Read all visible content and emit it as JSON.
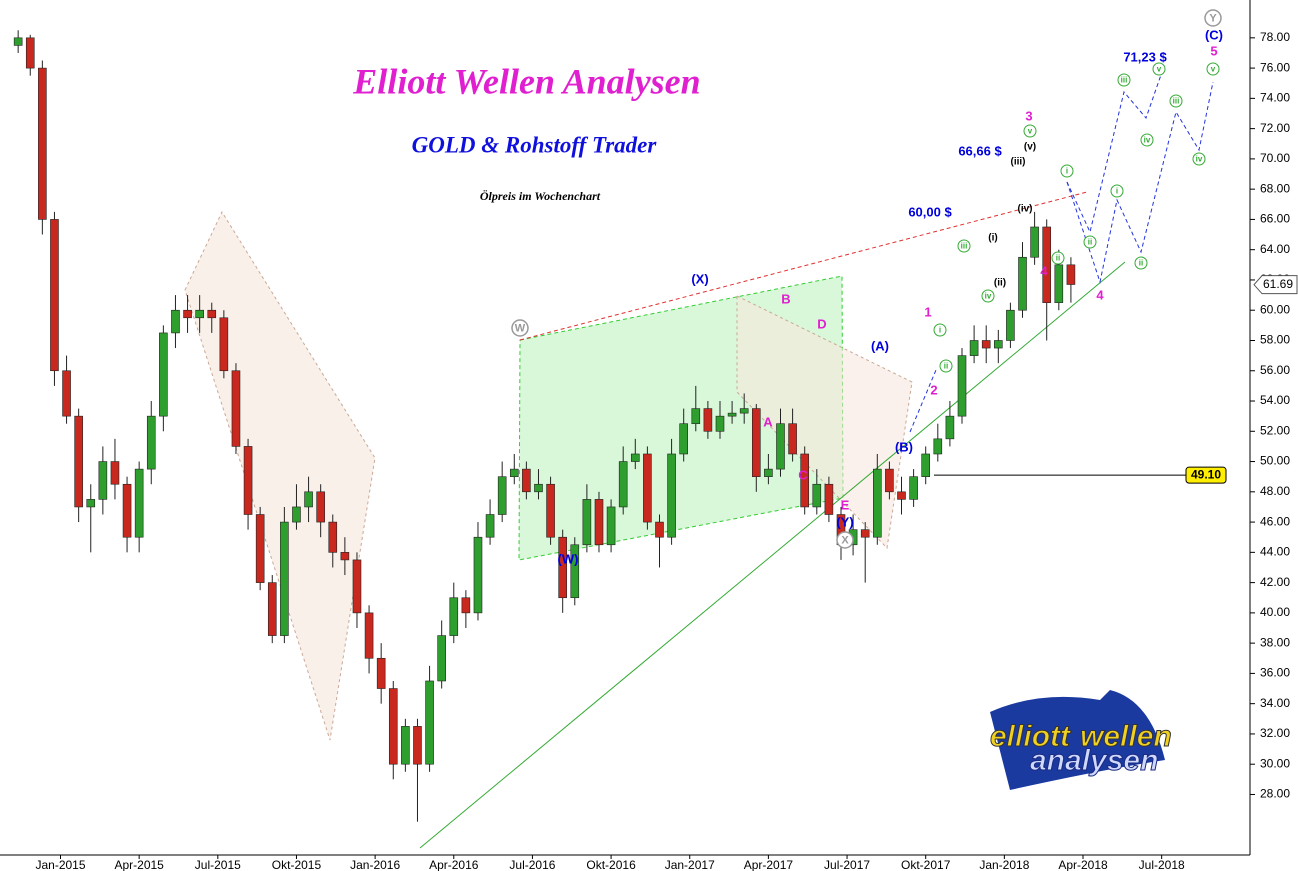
{
  "chart_data": {
    "type": "candlestick",
    "title": "Elliott Wellen Analysen",
    "subtitle": "GOLD & Rohstoff Trader",
    "caption": "Ölpreis im Wochenchart",
    "logo": [
      "elliott",
      "wellen",
      "analysen"
    ],
    "up_color": "#2e9e2e",
    "down_color": "#c8281e",
    "x": [
      -7,
      -5,
      -3,
      -1,
      1,
      3,
      5,
      7,
      9,
      11,
      13,
      15,
      17,
      19,
      21,
      23,
      25,
      27,
      29,
      31,
      33,
      35,
      37,
      39,
      41,
      43,
      45,
      47,
      49,
      51,
      53,
      55,
      57,
      59,
      61,
      63,
      65,
      67,
      69,
      71,
      73,
      75,
      77,
      79,
      81,
      83,
      85,
      87,
      89,
      91,
      93,
      95,
      97,
      99,
      101,
      103,
      105,
      107,
      109,
      111,
      113,
      115,
      117,
      119,
      121,
      123,
      125,
      127,
      129,
      131,
      133,
      135,
      137,
      139,
      141,
      143,
      145,
      147,
      149,
      151,
      153,
      155,
      157,
      159,
      161,
      163,
      165,
      167
    ],
    "open": [
      77.5,
      78,
      76,
      66,
      56,
      53,
      47,
      47.5,
      50,
      48.5,
      45,
      49.5,
      53,
      58.5,
      60,
      59.5,
      60,
      59.5,
      56,
      51,
      46.5,
      42,
      38.5,
      46,
      47,
      48,
      46,
      44,
      43.5,
      40,
      37,
      35,
      30,
      32.5,
      30,
      35.5,
      38.5,
      41,
      40,
      45,
      46.5,
      49,
      49.5,
      48,
      48.5,
      45,
      41,
      44.5,
      47.5,
      44.5,
      47,
      50,
      50.5,
      46,
      45,
      50.5,
      52.5,
      53.5,
      52,
      53,
      53.2,
      53.5,
      49,
      49.5,
      52.5,
      50.5,
      47,
      48.5,
      46.5,
      44.5,
      45.5,
      45,
      49.5,
      48,
      47.5,
      49,
      50.5,
      51.5,
      53,
      57,
      58,
      57.5,
      58,
      60,
      63.5,
      65.5,
      60.5,
      63
    ],
    "high": [
      78.5,
      78.2,
      76.5,
      66.5,
      57,
      53.5,
      48.5,
      51,
      51.5,
      49,
      50,
      54,
      59,
      61,
      61,
      61,
      60.5,
      60,
      56.5,
      51.5,
      47,
      42.5,
      47,
      48.5,
      49,
      48.5,
      46.5,
      45,
      44,
      40.5,
      38,
      35.5,
      33,
      33,
      36.5,
      39.5,
      42,
      41.5,
      46,
      47.5,
      50,
      50.5,
      50,
      49.5,
      49,
      45.5,
      45,
      48.5,
      48,
      47.5,
      51,
      51.5,
      51,
      46.5,
      51.5,
      53.5,
      55,
      54,
      54,
      54,
      54.5,
      53.8,
      50.5,
      53.5,
      53.5,
      51,
      49.5,
      49,
      47,
      46.5,
      46,
      50.5,
      50,
      49,
      49.5,
      51,
      52.5,
      54,
      57.5,
      59,
      59,
      58.7,
      60.5,
      64.5,
      66.5,
      66,
      64,
      63.5
    ],
    "low": [
      77,
      75.5,
      65,
      55,
      52.5,
      46,
      44,
      46.5,
      47.5,
      44,
      44,
      48.5,
      52,
      57.5,
      58.5,
      58.5,
      58.5,
      55.5,
      50.5,
      45.5,
      41.5,
      38,
      38,
      45.5,
      46,
      45,
      43,
      42.5,
      39,
      36,
      34,
      29,
      29.5,
      26.2,
      29.5,
      35,
      38,
      39,
      39.5,
      44.5,
      46,
      48.5,
      47.5,
      47.5,
      44.5,
      40,
      40.5,
      44,
      44,
      44,
      46.5,
      49.5,
      45.5,
      43,
      44.5,
      50,
      52,
      51.5,
      51.5,
      52.5,
      52.5,
      48,
      48.5,
      49,
      50,
      46.5,
      46.5,
      46,
      43.5,
      43.8,
      42,
      44.5,
      47.5,
      46.5,
      47,
      48.5,
      50,
      51,
      52.5,
      56.5,
      56.5,
      56.5,
      57.5,
      59.5,
      63,
      58,
      60,
      60.5
    ],
    "close": [
      78,
      76,
      66,
      56,
      53,
      47,
      47.5,
      50,
      48.5,
      45,
      49.5,
      53,
      58.5,
      60,
      59.5,
      60,
      59.5,
      56,
      51,
      46.5,
      42,
      38.5,
      46,
      47,
      48,
      46,
      44,
      43.5,
      40,
      37,
      35,
      30,
      32.5,
      30,
      35.5,
      38.5,
      41,
      40,
      45,
      46.5,
      49,
      49.5,
      48,
      48.5,
      45,
      41,
      44.5,
      47.5,
      44.5,
      47,
      50,
      50.5,
      46,
      45,
      50.5,
      52.5,
      53.5,
      52,
      53,
      53.2,
      53.5,
      49,
      49.5,
      52.5,
      50.5,
      47,
      48.5,
      46.5,
      44.5,
      45.5,
      45,
      49.5,
      48,
      47.5,
      49,
      50.5,
      51.5,
      53,
      57,
      58,
      57.5,
      58,
      60,
      63.5,
      65.5,
      60.5,
      63,
      61.7
    ],
    "xlim": [
      -10,
      196.6
    ],
    "xticks": [
      {
        "value": 0,
        "label": "Jan-2015"
      },
      {
        "value": 13,
        "label": "Apr-2015"
      },
      {
        "value": 26,
        "label": "Jul-2015"
      },
      {
        "value": 39,
        "label": "Okt-2015"
      },
      {
        "value": 52,
        "label": "Jan-2016"
      },
      {
        "value": 65,
        "label": "Apr-2016"
      },
      {
        "value": 78,
        "label": "Jul-2016"
      },
      {
        "value": 91,
        "label": "Okt-2016"
      },
      {
        "value": 104,
        "label": "Jan-2017"
      },
      {
        "value": 117,
        "label": "Apr-2017"
      },
      {
        "value": 130,
        "label": "Jul-2017"
      },
      {
        "value": 143,
        "label": "Okt-2017"
      },
      {
        "value": 156,
        "label": "Jan-2018"
      },
      {
        "value": 169,
        "label": "Apr-2018"
      },
      {
        "value": 182,
        "label": "Jul-2018"
      }
    ],
    "ylim": [
      24,
      80.5
    ],
    "yticks": [
      {
        "value": 28,
        "label": "28.00"
      },
      {
        "value": 30,
        "label": "30.00"
      },
      {
        "value": 32,
        "label": "32.00"
      },
      {
        "value": 34,
        "label": "34.00"
      },
      {
        "value": 36,
        "label": "36.00"
      },
      {
        "value": 38,
        "label": "38.00"
      },
      {
        "value": 40,
        "label": "40.00"
      },
      {
        "value": 42,
        "label": "42.00"
      },
      {
        "value": 44,
        "label": "44.00"
      },
      {
        "value": 46,
        "label": "46.00"
      },
      {
        "value": 48,
        "label": "48.00"
      },
      {
        "value": 50,
        "label": "50.00"
      },
      {
        "value": 52,
        "label": "52.00"
      },
      {
        "value": 54,
        "label": "54.00"
      },
      {
        "value": 56,
        "label": "56.00"
      },
      {
        "value": 58,
        "label": "58.00"
      },
      {
        "value": 60,
        "label": "60.00"
      },
      {
        "value": 62,
        "label": "62.00"
      },
      {
        "value": 64,
        "label": "64.00"
      },
      {
        "value": 66,
        "label": "66.00"
      },
      {
        "value": 68,
        "label": "68.00"
      },
      {
        "value": 70,
        "label": "70.00"
      },
      {
        "value": 72,
        "label": "72.00"
      },
      {
        "value": 74,
        "label": "74.00"
      },
      {
        "value": 76,
        "label": "76.00"
      },
      {
        "value": 78,
        "label": "78.00"
      }
    ],
    "last_price": 61.69,
    "level": {
      "value": 49.1,
      "label": "49.10"
    },
    "annotations": [
      {
        "text": "(W)",
        "color": "#0000dd"
      },
      {
        "text": "(X)",
        "color": "#0000dd"
      },
      {
        "text": "(Y)",
        "color": "#0000dd"
      },
      {
        "text": "(A)",
        "color": "#0000dd"
      },
      {
        "text": "(B)",
        "color": "#0000dd"
      },
      {
        "text": "(C)",
        "color": "#0000dd"
      },
      {
        "text": "W",
        "color": "#999999",
        "circled": true
      },
      {
        "text": "X",
        "color": "#999999",
        "circled": true
      },
      {
        "text": "Y",
        "color": "#999999",
        "circled": true
      },
      {
        "text": "A",
        "color": "#e020d0"
      },
      {
        "text": "B",
        "color": "#e020d0"
      },
      {
        "text": "C",
        "color": "#e020d0"
      },
      {
        "text": "D",
        "color": "#e020d0"
      },
      {
        "text": "E",
        "color": "#e020d0"
      },
      {
        "text": "1",
        "color": "#e020d0"
      },
      {
        "text": "2",
        "color": "#e020d0"
      },
      {
        "text": "3",
        "color": "#e020d0"
      },
      {
        "text": "4",
        "color": "#e020d0"
      },
      {
        "text": "5",
        "color": "#e020d0"
      },
      {
        "text": "4",
        "color": "#e020d0"
      },
      {
        "text": "60,00 $",
        "color": "#0000dd"
      },
      {
        "text": "66,66 $",
        "color": "#0000dd"
      },
      {
        "text": "71,23 $",
        "color": "#0000dd"
      },
      {
        "text": "(i)",
        "color": "#000000"
      },
      {
        "text": "(ii)",
        "color": "#000000"
      },
      {
        "text": "(iii)",
        "color": "#000000"
      },
      {
        "text": "(iv)",
        "color": "#000000"
      },
      {
        "text": "(v)",
        "color": "#000000"
      },
      {
        "text": "i",
        "color": "#33aa33",
        "circled": true
      },
      {
        "text": "ii",
        "color": "#33aa33",
        "circled": true
      },
      {
        "text": "iii",
        "color": "#33aa33",
        "circled": true
      },
      {
        "text": "iv",
        "color": "#33aa33",
        "circled": true
      },
      {
        "text": "v",
        "color": "#33aa33",
        "circled": true
      },
      {
        "text": "i",
        "color": "#33aa33",
        "circled": true
      },
      {
        "text": "ii",
        "color": "#33aa33",
        "circled": true
      },
      {
        "text": "iii",
        "color": "#33aa33",
        "circled": true
      },
      {
        "text": "iv",
        "color": "#33aa33",
        "circled": true
      },
      {
        "text": "v",
        "color": "#33aa33",
        "circled": true
      },
      {
        "text": "i",
        "color": "#33aa33",
        "circled": true
      },
      {
        "text": "ii",
        "color": "#33aa33",
        "circled": true
      },
      {
        "text": "iii",
        "color": "#33aa33",
        "circled": true
      },
      {
        "text": "iv",
        "color": "#33aa33",
        "circled": true
      },
      {
        "text": "v",
        "color": "#33aa33",
        "circled": true
      },
      {
        "text": "ii",
        "color": "#33aa33",
        "circled": true
      }
    ]
  }
}
